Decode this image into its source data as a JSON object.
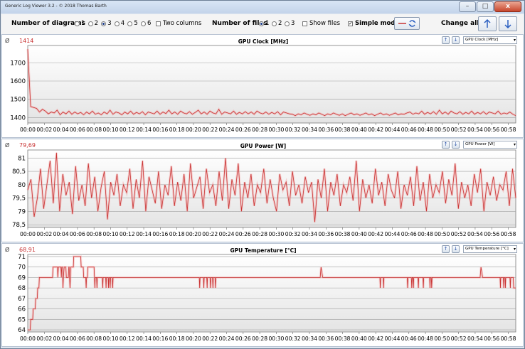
{
  "window": {
    "title": "Generic Log Viewer 3.2 - © 2018 Thomas Barth",
    "close_glyph": "x"
  },
  "toolbar": {
    "num_diagrams_label": "Number of diagrams",
    "diagram_options": [
      "1",
      "2",
      "3",
      "4",
      "5",
      "6"
    ],
    "diagrams_selected": "3",
    "two_columns_label": "Two columns",
    "num_files_label": "Number of files",
    "file_options": [
      "1",
      "2",
      "3"
    ],
    "files_selected": "1",
    "show_files_label": "Show files",
    "simple_mode_label": "Simple mode",
    "simple_mode_checked": true,
    "change_all_label": "Change all"
  },
  "chart_data": [
    {
      "type": "line",
      "title": "GPU Clock [MHz]",
      "current_value": "1414",
      "selector": "GPU Clock [MHz]",
      "ylim": [
        1370,
        1795
      ],
      "yticks": [
        1400,
        1500,
        1600,
        1700
      ],
      "x_ticks": [
        "00:00",
        "00:02",
        "00:04",
        "00:06",
        "00:08",
        "00:10",
        "00:12",
        "00:14",
        "00:16",
        "00:18",
        "00:20",
        "00:22",
        "00:24",
        "00:26",
        "00:28",
        "00:30",
        "00:32",
        "00:34",
        "00:36",
        "00:38",
        "00:40",
        "00:42",
        "00:44",
        "00:46",
        "00:48",
        "00:50",
        "00:52",
        "00:54",
        "00:56",
        "00:58"
      ],
      "series": [
        {
          "color": "#c83232",
          "values": [
            1775,
            1460,
            1455,
            1450,
            1430,
            1445,
            1435,
            1420,
            1430,
            1425,
            1440,
            1415,
            1430,
            1420,
            1435,
            1418,
            1430,
            1420,
            1428,
            1415,
            1430,
            1420,
            1435,
            1418,
            1425,
            1415,
            1430,
            1420,
            1440,
            1418,
            1430,
            1425,
            1415,
            1430,
            1420,
            1435,
            1418,
            1428,
            1420,
            1432,
            1415,
            1430,
            1425,
            1420,
            1435,
            1418,
            1430,
            1422,
            1440,
            1420,
            1430,
            1418,
            1435,
            1425,
            1420,
            1432,
            1418,
            1428,
            1440,
            1420,
            1430,
            1418,
            1435,
            1425,
            1420,
            1445,
            1418,
            1430,
            1425,
            1420,
            1435,
            1418,
            1428,
            1420,
            1432,
            1420,
            1430,
            1418,
            1435,
            1425,
            1420,
            1430,
            1418,
            1428,
            1420,
            1432,
            1415,
            1430,
            1425,
            1420,
            1418,
            1410,
            1420,
            1415,
            1425,
            1418,
            1412,
            1420,
            1415,
            1425,
            1418,
            1410,
            1420,
            1415,
            1425,
            1418,
            1412,
            1420,
            1410,
            1418,
            1425,
            1415,
            1420,
            1412,
            1418,
            1425,
            1415,
            1420,
            1410,
            1418,
            1425,
            1415,
            1420,
            1412,
            1418,
            1425,
            1415,
            1420,
            1418,
            1425,
            1430,
            1418,
            1425,
            1420,
            1435,
            1418,
            1428,
            1420,
            1432,
            1418,
            1440,
            1420,
            1430,
            1418,
            1435,
            1425,
            1420,
            1432,
            1418,
            1428,
            1420,
            1435,
            1418,
            1428,
            1420,
            1432,
            1418,
            1430,
            1425,
            1420,
            1435,
            1418,
            1425,
            1420,
            1430,
            1418,
            1410
          ]
        }
      ]
    },
    {
      "type": "line",
      "title": "GPU Power [W]",
      "current_value": "79,69",
      "selector": "GPU Power [W]",
      "ylim": [
        78.4,
        81.3
      ],
      "yticks": [
        78.5,
        79,
        79.5,
        80,
        80.5,
        81
      ],
      "ytick_labels": [
        "78,5",
        "79",
        "79,5",
        "80",
        "80,5",
        "81"
      ],
      "x_ticks": [
        "00:00",
        "00:02",
        "00:04",
        "00:06",
        "00:08",
        "00:10",
        "00:12",
        "00:14",
        "00:16",
        "00:18",
        "00:20",
        "00:22",
        "00:24",
        "00:26",
        "00:28",
        "00:30",
        "00:32",
        "00:34",
        "00:36",
        "00:38",
        "00:40",
        "00:42",
        "00:44",
        "00:46",
        "00:48",
        "00:50",
        "00:52",
        "00:54",
        "00:56",
        "00:58"
      ],
      "series": [
        {
          "color": "#c83232",
          "values": [
            79.8,
            80.2,
            78.8,
            79.5,
            80.6,
            79.1,
            80.0,
            80.9,
            79.3,
            81.2,
            79.0,
            80.4,
            79.6,
            80.1,
            78.9,
            80.7,
            79.4,
            80.0,
            79.2,
            80.8,
            79.5,
            80.3,
            79.0,
            79.9,
            80.5,
            78.7,
            80.1,
            79.6,
            80.4,
            79.2,
            80.0,
            79.7,
            80.6,
            79.1,
            80.2,
            79.5,
            80.9,
            79.0,
            80.3,
            79.8,
            79.3,
            80.5,
            79.1,
            80.0,
            79.6,
            80.7,
            79.2,
            80.1,
            79.4,
            80.4,
            79.0,
            80.8,
            79.5,
            79.9,
            80.3,
            79.1,
            80.6,
            79.7,
            80.0,
            79.2,
            80.5,
            79.4,
            81.0,
            79.1,
            80.2,
            79.6,
            80.8,
            79.0,
            80.1,
            79.5,
            80.4,
            79.2,
            80.0,
            79.7,
            80.6,
            79.3,
            80.2,
            79.5,
            79.0,
            80.4,
            79.8,
            80.1,
            79.2,
            80.5,
            79.6,
            80.0,
            79.3,
            80.3,
            79.7,
            80.1,
            78.6,
            80.2,
            79.5,
            80.6,
            79.0,
            80.1,
            79.6,
            80.4,
            79.2,
            80.0,
            79.7,
            80.3,
            79.4,
            80.9,
            79.0,
            80.2,
            79.5,
            80.0,
            79.3,
            80.6,
            79.6,
            80.1,
            79.2,
            80.4,
            79.8,
            79.5,
            80.5,
            79.1,
            80.0,
            79.6,
            80.3,
            79.2,
            80.7,
            79.4,
            80.1,
            79.0,
            80.4,
            79.5,
            80.0,
            79.7,
            80.5,
            79.3,
            80.2,
            79.6,
            80.8,
            79.1,
            80.1,
            79.5,
            80.0,
            79.2,
            80.4,
            79.7,
            80.6,
            79.0,
            80.1,
            79.6,
            80.3,
            79.4,
            80.0,
            79.8,
            80.5,
            79.2,
            80.6,
            79.5
          ]
        }
      ]
    },
    {
      "type": "line",
      "title": "GPU Temperature [°C]",
      "current_value": "68,91",
      "selector": "GPU Temperature [°C]",
      "ylim": [
        63.8,
        71.2
      ],
      "yticks": [
        64,
        65,
        66,
        67,
        68,
        69,
        70,
        71
      ],
      "x_ticks": [
        "00:00",
        "00:02",
        "00:04",
        "00:06",
        "00:08",
        "00:10",
        "00:12",
        "00:14",
        "00:16",
        "00:18",
        "00:20",
        "00:22",
        "00:24",
        "00:26",
        "00:28",
        "00:30",
        "00:32",
        "00:34",
        "00:36",
        "00:38",
        "00:40",
        "00:42",
        "00:44",
        "00:46",
        "00:48",
        "00:50",
        "00:52",
        "00:54",
        "00:56",
        "00:58"
      ],
      "series": [
        {
          "color": "#c83232",
          "values": [
            [
              0,
              64
            ],
            [
              0.3,
              64
            ],
            [
              0.35,
              65
            ],
            [
              0.6,
              65
            ],
            [
              0.65,
              66
            ],
            [
              0.9,
              66
            ],
            [
              0.95,
              67
            ],
            [
              1.15,
              67
            ],
            [
              1.2,
              68
            ],
            [
              1.35,
              68
            ],
            [
              1.4,
              69
            ],
            [
              3.0,
              69
            ],
            [
              3.05,
              70
            ],
            [
              3.6,
              70
            ],
            [
              3.62,
              69
            ],
            [
              3.7,
              70
            ],
            [
              4.0,
              70
            ],
            [
              4.05,
              69
            ],
            [
              4.1,
              70
            ],
            [
              4.2,
              70
            ],
            [
              4.25,
              68
            ],
            [
              4.3,
              69
            ],
            [
              4.4,
              70
            ],
            [
              4.6,
              70
            ],
            [
              4.65,
              69
            ],
            [
              4.9,
              69
            ],
            [
              4.95,
              70
            ],
            [
              5.0,
              70
            ],
            [
              5.05,
              69
            ],
            [
              5.1,
              68
            ],
            [
              5.15,
              69
            ],
            [
              5.2,
              70
            ],
            [
              5.5,
              70
            ],
            [
              5.55,
              71
            ],
            [
              6.4,
              71
            ],
            [
              6.45,
              70
            ],
            [
              6.7,
              70
            ],
            [
              6.75,
              69
            ],
            [
              7.0,
              69
            ],
            [
              7.05,
              68
            ],
            [
              7.1,
              69
            ],
            [
              7.2,
              69
            ],
            [
              7.25,
              70
            ],
            [
              8.0,
              70
            ],
            [
              8.05,
              69
            ],
            [
              8.1,
              68
            ],
            [
              8.15,
              69
            ],
            [
              8.3,
              69
            ],
            [
              8.35,
              68
            ],
            [
              8.4,
              69
            ],
            [
              9.0,
              69
            ],
            [
              9.05,
              68
            ],
            [
              9.1,
              69
            ],
            [
              9.4,
              69
            ],
            [
              9.45,
              68
            ],
            [
              9.5,
              69
            ],
            [
              9.7,
              69
            ],
            [
              9.75,
              68
            ],
            [
              9.8,
              69
            ],
            [
              9.9,
              69
            ],
            [
              9.95,
              68
            ],
            [
              10.0,
              69
            ],
            [
              10.2,
              69
            ],
            [
              10.25,
              68
            ],
            [
              10.3,
              69
            ],
            [
              20.7,
              69
            ],
            [
              20.75,
              68
            ],
            [
              20.8,
              69
            ],
            [
              21.2,
              69
            ],
            [
              21.25,
              68
            ],
            [
              21.3,
              69
            ],
            [
              21.6,
              69
            ],
            [
              21.65,
              68
            ],
            [
              21.7,
              69
            ],
            [
              22.0,
              69
            ],
            [
              22.05,
              68
            ],
            [
              22.1,
              69
            ],
            [
              22.3,
              69
            ],
            [
              22.35,
              68
            ],
            [
              22.4,
              69
            ],
            [
              22.6,
              69
            ],
            [
              22.65,
              68
            ],
            [
              22.7,
              69
            ],
            [
              35.3,
              69
            ],
            [
              35.4,
              70
            ],
            [
              35.6,
              69
            ],
            [
              42.5,
              69
            ],
            [
              42.55,
              68
            ],
            [
              42.6,
              69
            ],
            [
              42.9,
              69
            ],
            [
              42.95,
              68
            ],
            [
              43.0,
              69
            ],
            [
              45.8,
              69
            ],
            [
              45.85,
              68
            ],
            [
              45.9,
              69
            ],
            [
              46.3,
              69
            ],
            [
              46.35,
              68
            ],
            [
              46.4,
              69
            ],
            [
              46.5,
              69
            ],
            [
              46.55,
              68
            ],
            [
              46.6,
              69
            ],
            [
              47.1,
              69
            ],
            [
              47.15,
              68
            ],
            [
              47.2,
              69
            ],
            [
              47.7,
              69
            ],
            [
              47.75,
              68
            ],
            [
              47.8,
              69
            ],
            [
              48.5,
              69
            ],
            [
              48.55,
              68
            ],
            [
              48.6,
              69
            ],
            [
              48.7,
              69
            ],
            [
              48.75,
              68
            ],
            [
              48.8,
              69
            ],
            [
              54.6,
              69
            ],
            [
              54.7,
              70
            ],
            [
              54.9,
              69
            ],
            [
              57.0,
              69
            ],
            [
              57.05,
              68
            ],
            [
              57.1,
              69
            ],
            [
              57.4,
              69
            ],
            [
              57.45,
              68
            ],
            [
              57.5,
              69
            ],
            [
              57.6,
              69
            ],
            [
              57.65,
              68
            ],
            [
              57.7,
              69
            ],
            [
              58.2,
              69
            ],
            [
              58.25,
              68
            ],
            [
              58.3,
              69
            ],
            [
              58.6,
              69
            ],
            [
              58.65,
              68
            ],
            [
              58.9,
              68
            ]
          ]
        }
      ]
    }
  ]
}
